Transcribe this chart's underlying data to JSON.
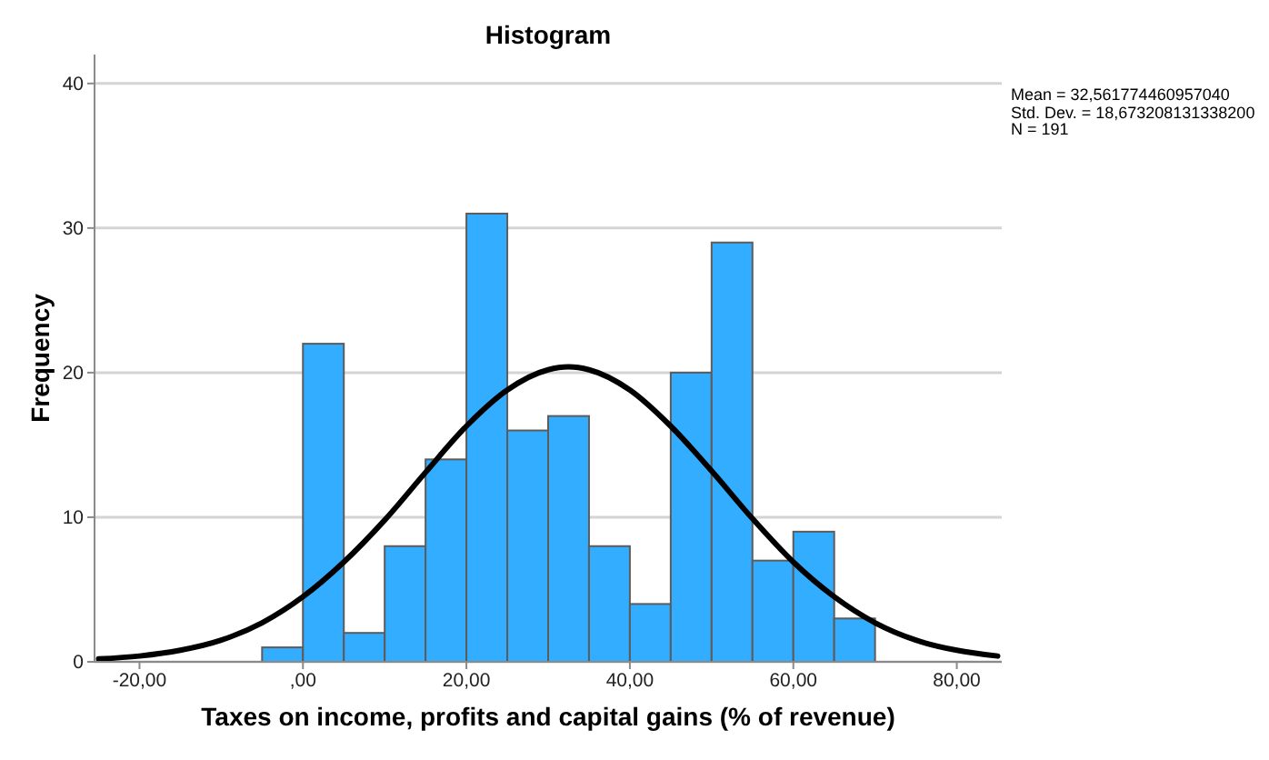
{
  "chart_data": {
    "type": "histogram",
    "title": "Histogram",
    "xlabel": "Taxes on income, profits and capital gains (% of revenue)",
    "ylabel": "Frequency",
    "bins": [
      -5,
      0,
      5,
      10,
      15,
      20,
      25,
      30,
      35,
      40,
      45,
      50,
      55,
      60,
      65,
      70
    ],
    "series": [
      {
        "type": "histogram",
        "color": "#33adff",
        "values": [
          1,
          22,
          2,
          8,
          14,
          31,
          16,
          17,
          8,
          4,
          20,
          29,
          7,
          9,
          3
        ]
      },
      {
        "type": "line",
        "color": "#000000",
        "x": [
          -25,
          -20,
          -15,
          -10,
          -5,
          0,
          5,
          10,
          15,
          20,
          25,
          30,
          32.5,
          35,
          40,
          45,
          50,
          55,
          60,
          65,
          70,
          75,
          80,
          85
        ],
        "values": [
          0.2,
          0.4,
          0.8,
          1.5,
          2.7,
          4.5,
          6.9,
          9.8,
          13.1,
          16.3,
          18.8,
          20.2,
          20.4,
          20.2,
          18.8,
          16.3,
          13.2,
          9.9,
          6.9,
          4.5,
          2.7,
          1.5,
          0.8,
          0.4
        ]
      }
    ],
    "xlim": [
      -25.5,
      85.5
    ],
    "xticks": [
      {
        "value": -20,
        "label": "-20,00"
      },
      {
        "value": 0,
        "label": ",00"
      },
      {
        "value": 20,
        "label": "20,00"
      },
      {
        "value": 40,
        "label": "40,00"
      },
      {
        "value": 60,
        "label": "60,00"
      },
      {
        "value": 80,
        "label": "80,00"
      }
    ],
    "ylim": [
      0,
      42
    ],
    "yticks": [
      0,
      10,
      20,
      30,
      40
    ],
    "grid": "y",
    "annotations": [
      "Mean = 32,561774460957040",
      "Std. Dev. = 18,673208131338200",
      "N = 191"
    ]
  }
}
